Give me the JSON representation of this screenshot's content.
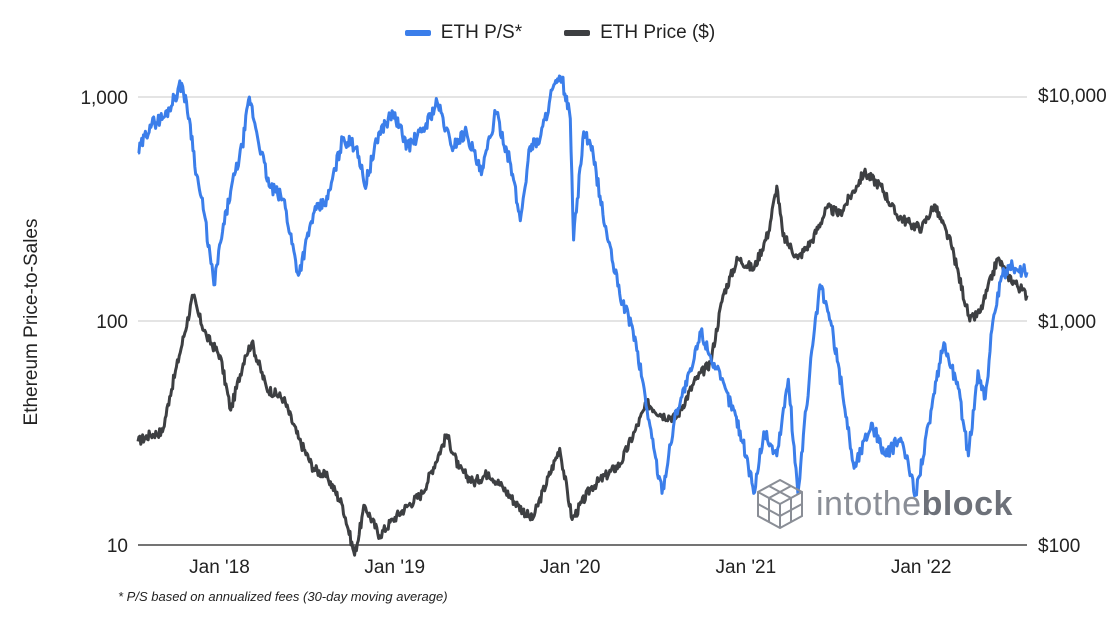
{
  "legend": [
    {
      "label": "ETH P/S*",
      "color": "#3B7EEA"
    },
    {
      "label": "ETH Price ($)",
      "color": "#3D3F42"
    }
  ],
  "ylabel": "Ethereum Price-to-Sales",
  "footnote": "* P/S based on annualized fees (30-day moving average)",
  "watermark": {
    "pre": "intothe",
    "bold": "block",
    "icon": "intotheblock-cube-logo"
  },
  "chart_data": {
    "type": "line",
    "title": "",
    "xlabel": "",
    "ylabel": "Ethereum Price-to-Sales",
    "x_range": [
      "2017-09-20",
      "2022-10-15"
    ],
    "x_ticks": [
      {
        "date": "2018-01-01",
        "label": "Jan  '18"
      },
      {
        "date": "2019-01-01",
        "label": "Jan  '19"
      },
      {
        "date": "2020-01-01",
        "label": "Jan  '20"
      },
      {
        "date": "2021-01-01",
        "label": "Jan  '21"
      },
      {
        "date": "2022-01-01",
        "label": "Jan  '22"
      }
    ],
    "y_left": {
      "scale": "log",
      "range": [
        10,
        1000
      ],
      "ticks": [
        {
          "value": 10,
          "label": "10"
        },
        {
          "value": 100,
          "label": "100"
        },
        {
          "value": 1000,
          "label": "1,000"
        }
      ]
    },
    "y_right": {
      "scale": "log",
      "range": [
        100,
        10000
      ],
      "ticks": [
        {
          "value": 100,
          "label": "$100"
        },
        {
          "value": 1000,
          "label": "$1,000"
        },
        {
          "value": 10000,
          "label": "$10,000"
        }
      ]
    },
    "grid": true,
    "legend_position": "top",
    "series": [
      {
        "name": "ETH P/S*",
        "axis": "left",
        "color": "#3B7EEA",
        "points": [
          [
            "2017-09-20",
            560
          ],
          [
            "2017-10-15",
            750
          ],
          [
            "2017-11-15",
            820
          ],
          [
            "2017-12-20",
            1150
          ],
          [
            "2018-01-05",
            800
          ],
          [
            "2018-01-20",
            450
          ],
          [
            "2018-02-05",
            300
          ],
          [
            "2018-02-25",
            145
          ],
          [
            "2018-03-15",
            250
          ],
          [
            "2018-04-01",
            380
          ],
          [
            "2018-04-25",
            600
          ],
          [
            "2018-05-10",
            1000
          ],
          [
            "2018-05-25",
            700
          ],
          [
            "2018-06-20",
            400
          ],
          [
            "2018-07-20",
            350
          ],
          [
            "2018-08-20",
            160
          ],
          [
            "2018-09-20",
            300
          ],
          [
            "2018-10-20",
            350
          ],
          [
            "2018-11-20",
            650
          ],
          [
            "2018-12-20",
            600
          ],
          [
            "2019-01-05",
            400
          ],
          [
            "2019-02-05",
            700
          ],
          [
            "2019-03-05",
            850
          ],
          [
            "2019-04-05",
            600
          ],
          [
            "2019-05-05",
            700
          ],
          [
            "2019-06-05",
            950
          ],
          [
            "2019-07-05",
            600
          ],
          [
            "2019-08-05",
            700
          ],
          [
            "2019-09-05",
            450
          ],
          [
            "2019-10-05",
            850
          ],
          [
            "2019-11-05",
            500
          ],
          [
            "2019-11-25",
            280
          ],
          [
            "2019-12-15",
            600
          ],
          [
            "2020-01-05",
            650
          ],
          [
            "2020-02-01",
            1100
          ],
          [
            "2020-02-20",
            1200
          ],
          [
            "2020-03-08",
            800
          ],
          [
            "2020-03-15",
            230
          ],
          [
            "2020-04-05",
            700
          ],
          [
            "2020-04-25",
            550
          ],
          [
            "2020-05-15",
            300
          ],
          [
            "2020-06-05",
            180
          ],
          [
            "2020-06-25",
            120
          ],
          [
            "2020-07-15",
            95
          ],
          [
            "2020-08-05",
            55
          ],
          [
            "2020-08-25",
            30
          ],
          [
            "2020-09-15",
            17
          ],
          [
            "2020-10-15",
            40
          ],
          [
            "2020-11-15",
            60
          ],
          [
            "2020-12-05",
            90
          ],
          [
            "2020-12-25",
            70
          ],
          [
            "2021-01-15",
            55
          ],
          [
            "2021-02-15",
            38
          ],
          [
            "2021-03-10",
            25
          ],
          [
            "2021-03-25",
            17
          ],
          [
            "2021-04-15",
            32
          ],
          [
            "2021-05-12",
            25
          ],
          [
            "2021-06-05",
            55
          ],
          [
            "2021-06-25",
            17
          ],
          [
            "2021-07-20",
            60
          ],
          [
            "2021-08-10",
            145
          ],
          [
            "2021-09-01",
            100
          ],
          [
            "2021-09-25",
            50
          ],
          [
            "2021-10-20",
            22
          ],
          [
            "2021-11-25",
            35
          ],
          [
            "2021-12-25",
            25
          ],
          [
            "2022-01-25",
            30
          ],
          [
            "2022-02-25",
            17
          ],
          [
            "2022-03-25",
            35
          ],
          [
            "2022-04-25",
            80
          ],
          [
            "2022-05-25",
            50
          ],
          [
            "2022-06-15",
            25
          ],
          [
            "2022-07-05",
            60
          ],
          [
            "2022-07-20",
            45
          ],
          [
            "2022-08-05",
            100
          ],
          [
            "2022-08-25",
            160
          ],
          [
            "2022-09-15",
            175
          ],
          [
            "2022-10-15",
            165
          ]
        ]
      },
      {
        "name": "ETH Price ($)",
        "axis": "right",
        "color": "#3D3F42",
        "points": [
          [
            "2017-09-20",
            290
          ],
          [
            "2017-10-15",
            310
          ],
          [
            "2017-11-10",
            320
          ],
          [
            "2017-11-25",
            460
          ],
          [
            "2017-12-15",
            700
          ],
          [
            "2018-01-13",
            1300
          ],
          [
            "2018-01-25",
            1050
          ],
          [
            "2018-02-10",
            850
          ],
          [
            "2018-03-10",
            700
          ],
          [
            "2018-04-01",
            400
          ],
          [
            "2018-05-01",
            700
          ],
          [
            "2018-05-15",
            800
          ],
          [
            "2018-06-15",
            500
          ],
          [
            "2018-07-20",
            450
          ],
          [
            "2018-08-20",
            300
          ],
          [
            "2018-09-20",
            220
          ],
          [
            "2018-10-20",
            200
          ],
          [
            "2018-11-20",
            150
          ],
          [
            "2018-12-15",
            90
          ],
          [
            "2019-01-05",
            150
          ],
          [
            "2019-02-05",
            110
          ],
          [
            "2019-03-05",
            130
          ],
          [
            "2019-04-05",
            150
          ],
          [
            "2019-05-05",
            170
          ],
          [
            "2019-06-25",
            310
          ],
          [
            "2019-07-20",
            220
          ],
          [
            "2019-08-20",
            190
          ],
          [
            "2019-09-20",
            210
          ],
          [
            "2019-10-20",
            180
          ],
          [
            "2019-11-20",
            150
          ],
          [
            "2019-12-20",
            130
          ],
          [
            "2020-02-15",
            270
          ],
          [
            "2020-03-12",
            130
          ],
          [
            "2020-04-20",
            180
          ],
          [
            "2020-06-20",
            230
          ],
          [
            "2020-07-20",
            320
          ],
          [
            "2020-08-15",
            430
          ],
          [
            "2020-09-15",
            380
          ],
          [
            "2020-10-15",
            370
          ],
          [
            "2020-11-25",
            550
          ],
          [
            "2020-12-25",
            650
          ],
          [
            "2021-01-20",
            1300
          ],
          [
            "2021-02-20",
            1900
          ],
          [
            "2021-03-25",
            1700
          ],
          [
            "2021-04-25",
            2500
          ],
          [
            "2021-05-12",
            4000
          ],
          [
            "2021-05-25",
            2400
          ],
          [
            "2021-06-25",
            1900
          ],
          [
            "2021-07-25",
            2300
          ],
          [
            "2021-08-25",
            3200
          ],
          [
            "2021-09-20",
            3000
          ],
          [
            "2021-10-25",
            4000
          ],
          [
            "2021-11-10",
            4600
          ],
          [
            "2021-12-15",
            4000
          ],
          [
            "2022-01-15",
            3000
          ],
          [
            "2022-02-15",
            2700
          ],
          [
            "2022-03-10",
            2600
          ],
          [
            "2022-04-05",
            3300
          ],
          [
            "2022-05-10",
            2200
          ],
          [
            "2022-06-18",
            1000
          ],
          [
            "2022-07-10",
            1100
          ],
          [
            "2022-08-15",
            1900
          ],
          [
            "2022-09-05",
            1600
          ],
          [
            "2022-10-15",
            1300
          ]
        ]
      }
    ]
  }
}
